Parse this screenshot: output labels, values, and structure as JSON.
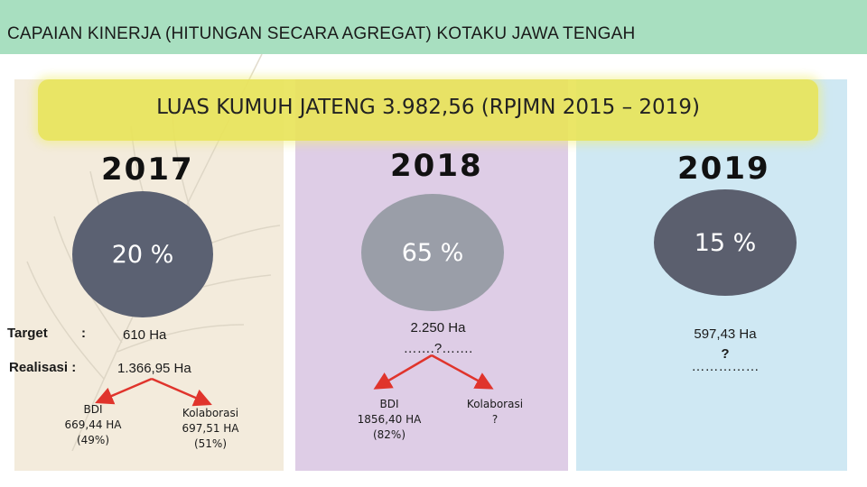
{
  "header": {
    "title": "CAPAIAN KINERJA (HITUNGAN SECARA AGREGAT) KOTAKU JAWA TENGAH"
  },
  "banner": {
    "text": "LUAS KUMUH JATENG 3.982,56 (RPJMN 2015 – 2019)"
  },
  "years": {
    "y2017": {
      "year": "2017",
      "percent": "20 %",
      "target_label": "Target",
      "target_colon": ":",
      "target_value": "610 Ha",
      "realisasi_label": "Realisasi :",
      "realisasi_value": "1.366,95 Ha",
      "bdi": {
        "name": "BDI",
        "area": "669,44 HA",
        "share": "(49%)"
      },
      "kolaborasi": {
        "name": "Kolaborasi",
        "area": "697,51 HA",
        "share": "(51%)"
      }
    },
    "y2018": {
      "year": "2018",
      "percent": "65 %",
      "target_value": "2.250  Ha",
      "realisasi_value": "…….?…….",
      "bdi": {
        "name": "BDI",
        "area": "1856,40 HA",
        "share": "(82%)"
      },
      "kolaborasi": {
        "name": "Kolaborasi",
        "area": "?"
      }
    },
    "y2019": {
      "year": "2019",
      "percent": "15 %",
      "target_value": "597,43 Ha",
      "realisasi_mark": "?",
      "realisasi_dots": "……………"
    }
  },
  "colors": {
    "header": "#a8dfc0",
    "banner": "#e8e45a",
    "panel_2017": "#f3ebdc",
    "panel_2018": "#decde6",
    "panel_2019": "#cfe8f3",
    "arrow": "#e0342c"
  }
}
